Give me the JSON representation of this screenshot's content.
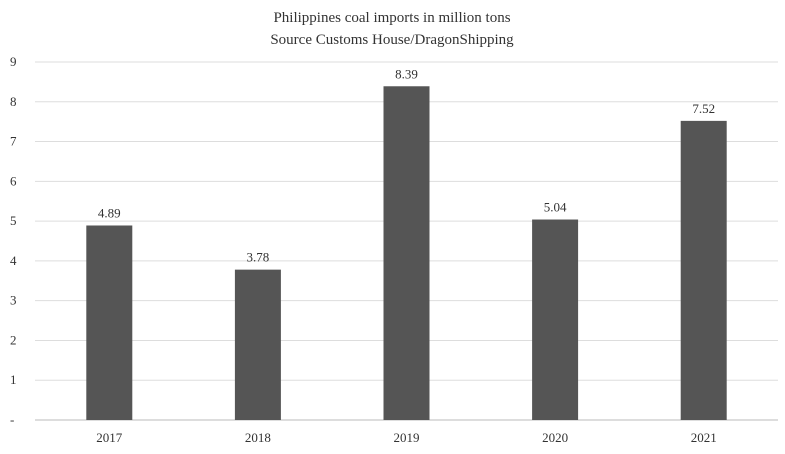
{
  "chart_data": {
    "type": "bar",
    "title": "Philippines coal imports in million tons",
    "subtitle": "Source Customs House/DragonShipping",
    "categories": [
      "2017",
      "2018",
      "2019",
      "2020",
      "2021"
    ],
    "values": [
      4.89,
      3.78,
      8.39,
      5.04,
      7.52
    ],
    "data_labels": [
      "4.89",
      "3.78",
      "8.39",
      "5.04",
      "7.52"
    ],
    "ylim": [
      0,
      9
    ],
    "y_ticks": [
      0,
      1,
      2,
      3,
      4,
      5,
      6,
      7,
      8,
      9
    ],
    "y_tick_labels": [
      "-",
      "1",
      "2",
      "3",
      "4",
      "5",
      "6",
      "7",
      "8",
      "9"
    ],
    "grid": true,
    "legend": "none",
    "bar_color": "#555555",
    "grid_color": "#dddddd",
    "axis_color": "#bbbbbb"
  }
}
